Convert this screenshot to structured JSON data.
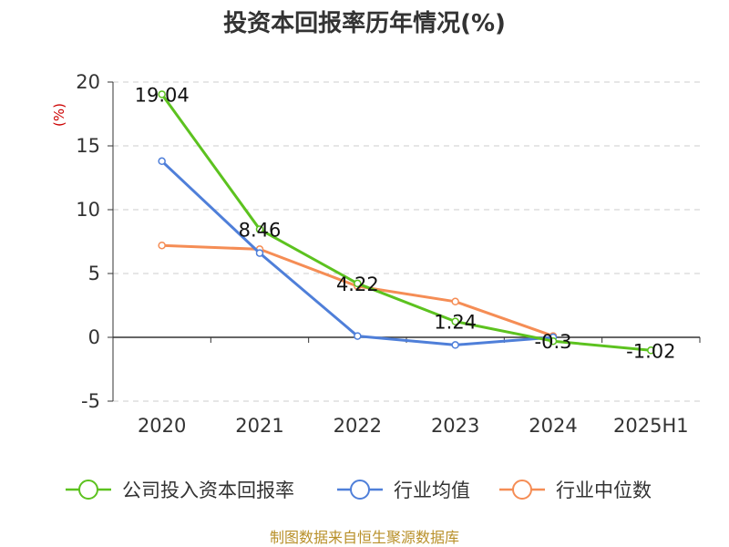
{
  "chart_data": {
    "type": "line",
    "title": "投资本回报率历年情况(%)",
    "ylabel": "(%)",
    "xlabel": "",
    "categories": [
      "2020",
      "2021",
      "2022",
      "2023",
      "2024",
      "2025H1"
    ],
    "ylim": [
      -5,
      20
    ],
    "yticks": [
      -5,
      0,
      5,
      10,
      15,
      20
    ],
    "grid": true,
    "legend_position": "bottom",
    "series": [
      {
        "name": "公司投入资本回报率",
        "color": "#5cc21f",
        "values": [
          19.04,
          8.46,
          4.22,
          1.24,
          -0.3,
          -1.02
        ],
        "labels": [
          "19.04",
          "8.46",
          "4.22",
          "1.24",
          "-0.3",
          "-1.02"
        ]
      },
      {
        "name": "行业均值",
        "color": "#4f7fd9",
        "values": [
          13.8,
          6.6,
          0.1,
          -0.6,
          0.0,
          null
        ]
      },
      {
        "name": "行业中位数",
        "color": "#f58d55",
        "values": [
          7.2,
          6.9,
          4.0,
          2.8,
          0.1,
          null
        ]
      }
    ]
  },
  "footer": {
    "source": "制图数据来自恒生聚源数据库"
  }
}
